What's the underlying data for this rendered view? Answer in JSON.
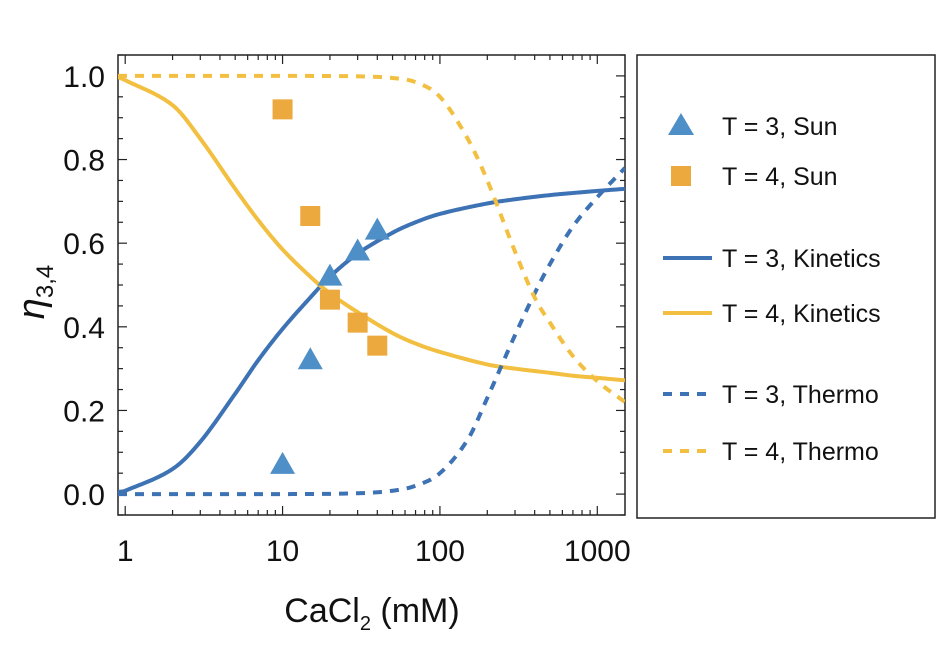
{
  "chart_data": {
    "type": "line",
    "xscale": "log",
    "xlim": [
      0.9,
      1500
    ],
    "ylim": [
      -0.05,
      1.05
    ],
    "xticks": [
      1,
      10,
      100,
      1000
    ],
    "xtick_labels": [
      "1",
      "10",
      "100",
      "1000"
    ],
    "yticks": [
      0.0,
      0.2,
      0.4,
      0.6,
      0.8,
      1.0
    ],
    "ytick_labels": [
      "0.0",
      "0.2",
      "0.4",
      "0.6",
      "0.8",
      "1.0"
    ],
    "xlabel": {
      "base": "CaCl",
      "sub": "2",
      "rest": " (mM)"
    },
    "ylabel": {
      "base": "η",
      "sub": "3,4"
    },
    "legend_position": "right-outside",
    "colors": {
      "T3": "#3d72b4",
      "T3_marker": "#4f8fc8",
      "T4": "#f2bf40",
      "T4_marker": "#eca93d"
    },
    "series": [
      {
        "name": "T = 3, Sun",
        "kind": "markers",
        "marker": "triangle",
        "x": [
          10,
          15,
          20,
          30,
          40
        ],
        "y": [
          0.07,
          0.32,
          0.52,
          0.58,
          0.63
        ]
      },
      {
        "name": "T = 4, Sun",
        "kind": "markers",
        "marker": "square",
        "x": [
          10,
          15,
          20,
          30,
          40
        ],
        "y": [
          0.92,
          0.665,
          0.465,
          0.41,
          0.355
        ]
      },
      {
        "name": "T = 3, Kinetics",
        "kind": "line",
        "dash": "solid",
        "x": [
          0.9,
          1,
          2,
          3,
          5,
          7,
          10,
          15,
          20,
          30,
          50,
          70,
          100,
          200,
          300,
          500,
          700,
          1000,
          1500
        ],
        "y": [
          0.005,
          0.008,
          0.06,
          0.125,
          0.24,
          0.32,
          0.395,
          0.47,
          0.52,
          0.575,
          0.625,
          0.65,
          0.67,
          0.695,
          0.705,
          0.715,
          0.72,
          0.725,
          0.73
        ]
      },
      {
        "name": "T = 4, Kinetics",
        "kind": "line",
        "dash": "solid",
        "x": [
          0.9,
          1,
          2,
          3,
          5,
          7,
          10,
          15,
          20,
          30,
          50,
          70,
          100,
          200,
          300,
          500,
          700,
          1000,
          1500
        ],
        "y": [
          0.997,
          0.99,
          0.93,
          0.85,
          0.73,
          0.655,
          0.585,
          0.52,
          0.48,
          0.435,
          0.385,
          0.36,
          0.34,
          0.31,
          0.3,
          0.29,
          0.283,
          0.278,
          0.272
        ]
      },
      {
        "name": "T = 3, Thermo",
        "kind": "line",
        "dash": "dashed",
        "x": [
          0.9,
          10,
          30,
          50,
          70,
          100,
          150,
          200,
          300,
          400,
          500,
          700,
          1000,
          1500
        ],
        "y": [
          0.0,
          0.0,
          0.002,
          0.008,
          0.02,
          0.05,
          0.13,
          0.23,
          0.38,
          0.48,
          0.55,
          0.64,
          0.71,
          0.78
        ]
      },
      {
        "name": "T = 4, Thermo",
        "kind": "line",
        "dash": "dashed",
        "x": [
          0.9,
          10,
          30,
          50,
          70,
          100,
          150,
          200,
          300,
          400,
          500,
          700,
          1000,
          1500
        ],
        "y": [
          1.0,
          1.0,
          0.999,
          0.995,
          0.985,
          0.95,
          0.85,
          0.75,
          0.58,
          0.47,
          0.41,
          0.33,
          0.27,
          0.22
        ]
      }
    ]
  }
}
